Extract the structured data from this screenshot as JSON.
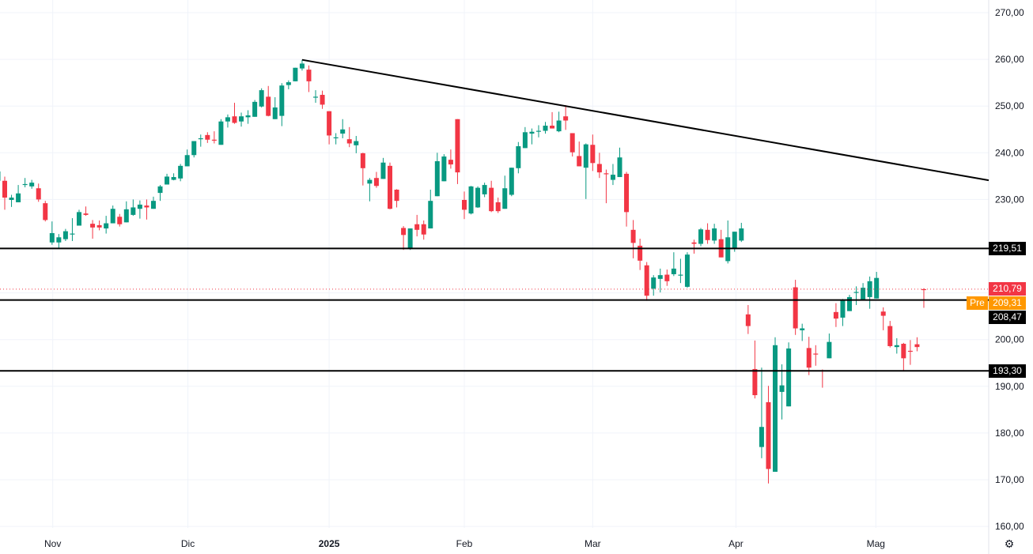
{
  "chart_data": {
    "type": "candlestick",
    "colors": {
      "up": "#089981",
      "down": "#f23645",
      "lines": "#000000",
      "last_price": "#f23645",
      "premarket": "#ff9800",
      "grid": "#f0f3fa"
    },
    "y_range": [
      158,
      272
    ],
    "y_ticks": [
      {
        "value": 270,
        "label": "270,00"
      },
      {
        "value": 260,
        "label": "260,00"
      },
      {
        "value": 250,
        "label": "250,00"
      },
      {
        "value": 240,
        "label": "240,00"
      },
      {
        "value": 230,
        "label": "230,00"
      },
      {
        "value": 200,
        "label": "200,00"
      },
      {
        "value": 190,
        "label": "190,00"
      },
      {
        "value": 180,
        "label": "180,00"
      },
      {
        "value": 170,
        "label": "170,00"
      },
      {
        "value": 160,
        "label": "160,00"
      }
    ],
    "grid_values": [
      160,
      170,
      180,
      190,
      200,
      210,
      220,
      230,
      240,
      250,
      260,
      270
    ],
    "x_ticks": [
      {
        "bar": 8.1,
        "label": "Nov",
        "bold": false
      },
      {
        "bar": 28.1,
        "label": "Dic",
        "bold": false
      },
      {
        "bar": 49.0,
        "label": "2025",
        "bold": true
      },
      {
        "bar": 69.0,
        "label": "Feb",
        "bold": false
      },
      {
        "bar": 88.0,
        "label": "Mar",
        "bold": false
      },
      {
        "bar": 109.2,
        "label": "Apr",
        "bold": false
      },
      {
        "bar": 129.9,
        "label": "Mag",
        "bold": false
      }
    ],
    "candles_ohlc": [
      [
        234,
        236.5,
        233.5,
        236
      ],
      [
        234,
        234.9,
        227.8,
        230.4
      ],
      [
        229.9,
        231,
        228.4,
        230.4
      ],
      [
        229.4,
        233.1,
        229.4,
        231.3
      ],
      [
        233.2,
        234.6,
        232.6,
        233.3
      ],
      [
        232.8,
        234.2,
        232.3,
        233.6
      ],
      [
        232.4,
        233.4,
        229.5,
        230
      ],
      [
        229.2,
        229.7,
        225.3,
        225.6
      ],
      [
        220.8,
        225.3,
        220.3,
        222.8
      ],
      [
        220.8,
        222.6,
        219.6,
        221.9
      ],
      [
        221.5,
        223.7,
        221.1,
        223.2
      ],
      [
        222.5,
        226,
        221.1,
        222.7
      ],
      [
        224.4,
        227.8,
        224.4,
        227.3
      ],
      [
        227,
        228.5,
        226.5,
        226.7
      ],
      [
        224.8,
        225.6,
        221.6,
        224
      ],
      [
        224.5,
        225.5,
        223.4,
        224
      ],
      [
        223.8,
        226.5,
        222.7,
        224.9
      ],
      [
        224.9,
        228.7,
        224.9,
        228
      ],
      [
        226.3,
        226.9,
        224.2,
        224.7
      ],
      [
        225.1,
        229.6,
        225.1,
        227.9
      ],
      [
        226.7,
        230,
        226.5,
        228.3
      ],
      [
        228,
        229.8,
        225.9,
        228.9
      ],
      [
        228.7,
        230,
        225.7,
        228.3
      ],
      [
        228,
        230.6,
        228,
        229.7
      ],
      [
        231.4,
        233.1,
        229.7,
        232.8
      ],
      [
        233.2,
        235.5,
        233.2,
        234.9
      ],
      [
        234.2,
        235.6,
        234.1,
        234.8
      ],
      [
        234.5,
        237.6,
        233.9,
        237.2
      ],
      [
        237.1,
        240.7,
        237.1,
        239.5
      ],
      [
        239.5,
        242.5,
        239,
        242.5
      ],
      [
        243,
        243.9,
        241.3,
        243.1
      ],
      [
        243.8,
        244.4,
        242.1,
        242.8
      ],
      [
        242.8,
        244.6,
        242,
        242.6
      ],
      [
        241.7,
        247.2,
        241.7,
        246.7
      ],
      [
        246.7,
        248.2,
        245.4,
        247.6
      ],
      [
        247.8,
        250.7,
        246.2,
        246.4
      ],
      [
        246.7,
        248.6,
        245.6,
        247.8
      ],
      [
        247.6,
        249.1,
        246.2,
        248
      ],
      [
        247.7,
        251.3,
        247.7,
        250.9
      ],
      [
        249.9,
        253.8,
        249.7,
        253.4
      ],
      [
        252,
        254.3,
        247.8,
        247.9
      ],
      [
        247.2,
        251.9,
        247.2,
        249.7
      ],
      [
        247.9,
        254.9,
        245.7,
        254.4
      ],
      [
        254.5,
        255.5,
        253.6,
        255.1
      ],
      [
        255.3,
        258.2,
        255.3,
        258.2
      ],
      [
        258.05,
        259.9,
        257.6,
        259.1
      ],
      [
        257.8,
        258.7,
        253,
        255.3
      ],
      [
        252,
        253.4,
        250.7,
        252
      ],
      [
        252.4,
        253.3,
        249.4,
        250.3
      ],
      [
        248.9,
        248.9,
        241.8,
        243.7
      ],
      [
        243.3,
        244.2,
        241.8,
        243.3
      ],
      [
        244.1,
        247.2,
        243.1,
        245
      ],
      [
        242.9,
        245.5,
        241.2,
        242
      ],
      [
        241.6,
        243.6,
        239.9,
        242.5
      ],
      [
        239.9,
        240,
        233,
        236.7
      ],
      [
        233.4,
        234.6,
        229.6,
        234.2
      ],
      [
        234.6,
        235.9,
        232.5,
        232.9
      ],
      [
        234.4,
        238.9,
        234.4,
        237.9
      ],
      [
        237.2,
        237.9,
        227.9,
        228
      ],
      [
        232.1,
        232.2,
        228.3,
        229.7
      ],
      [
        223.9,
        224.3,
        219.2,
        222.4
      ],
      [
        219.4,
        223.8,
        219.2,
        223.8
      ],
      [
        224.7,
        226.7,
        222.1,
        223.5
      ],
      [
        224.7,
        225.5,
        221.4,
        222.5
      ],
      [
        223.8,
        232.1,
        223.8,
        229.7
      ],
      [
        230.7,
        240,
        230.7,
        238.2
      ],
      [
        233.9,
        239.7,
        233.9,
        239.2
      ],
      [
        238.5,
        240.7,
        236.6,
        237.5
      ],
      [
        247.2,
        247.2,
        233.3,
        235.8
      ],
      [
        229.9,
        231.7,
        225.8,
        227.8
      ],
      [
        227,
        232.9,
        226.8,
        232.8
      ],
      [
        228.3,
        232.8,
        228.2,
        232.5
      ],
      [
        231.1,
        233.6,
        230.5,
        233.1
      ],
      [
        232.5,
        234,
        227.3,
        227.5
      ],
      [
        229.4,
        230.4,
        227.1,
        227.5
      ],
      [
        228,
        235.1,
        228,
        232.4
      ],
      [
        231,
        236.8,
        230.7,
        236.8
      ],
      [
        236.7,
        242.3,
        235.6,
        241.4
      ],
      [
        241,
        245.5,
        241,
        244.4
      ],
      [
        244.1,
        245.2,
        241.8,
        244.5
      ],
      [
        244.6,
        245.9,
        243.3,
        244.7
      ],
      [
        244.7,
        246.6,
        244.1,
        245.8
      ],
      [
        245.8,
        248.7,
        245.2,
        245.2
      ],
      [
        244.6,
        248.8,
        244.4,
        246.9
      ],
      [
        247.8,
        250.2,
        244.9,
        246.9
      ],
      [
        244.2,
        244.2,
        239.2,
        240.1
      ],
      [
        239.3,
        242.4,
        237.1,
        237.1
      ],
      [
        236.8,
        242,
        230.1,
        241.8
      ],
      [
        241.7,
        243.9,
        236.1,
        237.8
      ],
      [
        237.6,
        240,
        234.6,
        235.8
      ],
      [
        235.6,
        236.4,
        229.2,
        235.5
      ],
      [
        234.2,
        237.6,
        233.1,
        235.3
      ],
      [
        234.8,
        241.1,
        234.8,
        239
      ],
      [
        235.5,
        235.9,
        224.2,
        227.3
      ],
      [
        223.5,
        225.6,
        217.4,
        220.7
      ],
      [
        220.1,
        221.6,
        214.9,
        216.9
      ],
      [
        215.9,
        216.6,
        208.3,
        209.4
      ],
      [
        210.9,
        213.8,
        209.4,
        213.3
      ],
      [
        213,
        215.2,
        210.1,
        213.8
      ],
      [
        213.9,
        215,
        211.5,
        212.5
      ],
      [
        214,
        218.7,
        213.6,
        215.2
      ],
      [
        213.8,
        217.3,
        212.1,
        213.9
      ],
      [
        211.3,
        218.7,
        211.1,
        218.2
      ],
      [
        220.8,
        221.4,
        218.4,
        220.5
      ],
      [
        220.5,
        223.9,
        220,
        223.6
      ],
      [
        223.5,
        224.9,
        220.5,
        221.3
      ],
      [
        221.2,
        224.8,
        220.5,
        223.8
      ],
      [
        221.5,
        223.5,
        217.6,
        217.6
      ],
      [
        216.8,
        225.5,
        216.3,
        221.9
      ],
      [
        219.6,
        223.1,
        218.8,
        223.1
      ],
      [
        221.2,
        225,
        220.9,
        223.8
      ],
      [
        205.4,
        207.4,
        201.2,
        202.9
      ],
      [
        193.7,
        199.8,
        187.4,
        188.1
      ],
      [
        177,
        194,
        174.6,
        181.3
      ],
      [
        186.6,
        190.1,
        169.2,
        172.3
      ],
      [
        171.7,
        200.5,
        171.7,
        198.8
      ],
      [
        188.8,
        194.7,
        182.9,
        190.2
      ],
      [
        185.7,
        199.4,
        185.7,
        198.1
      ],
      [
        211.2,
        212.8,
        201,
        202.4
      ],
      [
        202,
        203.4,
        199.7,
        202.4
      ],
      [
        198.2,
        200.6,
        192.4,
        194
      ],
      [
        197,
        198.8,
        194.4,
        196.9
      ],
      [
        193.4,
        193.6,
        189.7,
        193.3
      ],
      [
        196,
        201.3,
        196,
        199.5
      ],
      [
        205.9,
        207.8,
        202.7,
        204.5
      ],
      [
        204.7,
        208.7,
        202.9,
        208.4
      ],
      [
        206.1,
        209.6,
        206.1,
        209.1
      ],
      [
        210.1,
        211.4,
        207.4,
        210.2
      ],
      [
        208.4,
        212.1,
        208.4,
        211.1
      ],
      [
        209.1,
        213.5,
        206.6,
        212.5
      ],
      [
        208.8,
        214.5,
        208.8,
        213.2
      ],
      [
        206,
        206.9,
        202,
        205.1
      ],
      [
        202.9,
        204,
        198.3,
        198.6
      ],
      [
        198.4,
        200.3,
        197,
        198.8
      ],
      [
        199.1,
        199.3,
        193.2,
        196
      ],
      [
        197.6,
        199.9,
        194.6,
        197.5
      ],
      [
        199,
        200.5,
        197.5,
        198.4
      ],
      [
        210.8,
        211,
        206.8,
        210.7
      ]
    ],
    "trendline": {
      "from": {
        "bar": 45,
        "price": 259.9
      },
      "to": {
        "bar": 146.6,
        "price": 234.1
      }
    },
    "horizontal_levels": [
      {
        "price": 219.51,
        "label": "219,51"
      },
      {
        "price": 208.47,
        "label": "208,47"
      },
      {
        "price": 193.3,
        "label": "193,30"
      }
    ],
    "last_price": {
      "price": 210.79,
      "label": "210,79"
    },
    "premarket": {
      "tag": "Pre",
      "price": 209.31,
      "label": "209,31"
    }
  },
  "icons": {
    "settings": "gear-icon"
  }
}
